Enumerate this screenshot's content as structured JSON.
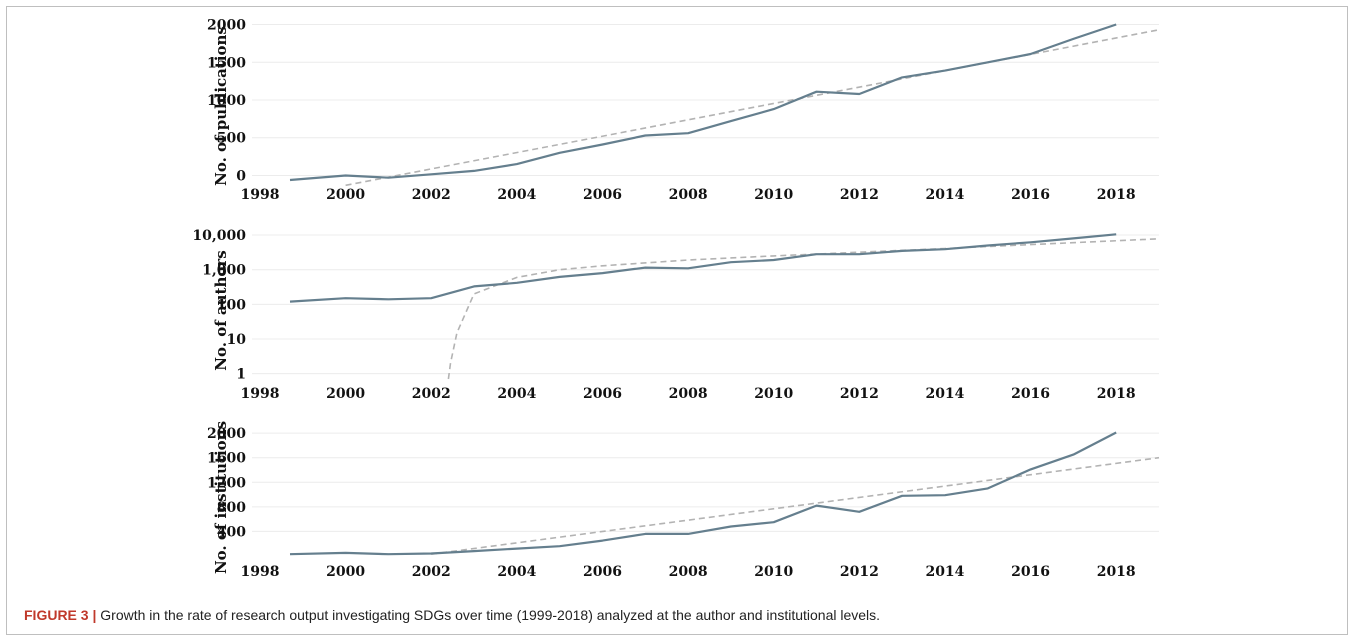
{
  "caption": {
    "label": "FIGURE 3 |",
    "text": "Growth in the rate of research output investigating SDGs over time (1999-2018) analyzed at the author and institutional levels."
  },
  "colors": {
    "series_line": "#657f8e",
    "trend_line": "#b3b3b3",
    "caption_label": "#c0392b"
  },
  "chart_data": [
    {
      "type": "line",
      "ylabel": "No. of publications",
      "y_scale": "linear",
      "ylim": [
        -100,
        2100
      ],
      "xlim": [
        1998,
        2019
      ],
      "x_ticks": [
        "1998",
        "2000",
        "2002",
        "2004",
        "2006",
        "2008",
        "2010",
        "2012",
        "2014",
        "2016",
        "2018"
      ],
      "y_ticks": [
        {
          "value": 0,
          "label": "0"
        },
        {
          "value": 500,
          "label": "500"
        },
        {
          "value": 1000,
          "label": "1000"
        },
        {
          "value": 1500,
          "label": "1500"
        },
        {
          "value": 2000,
          "label": "2000"
        }
      ],
      "grid": true,
      "series": [
        {
          "style": "solid",
          "x": [
            1998.7,
            2000,
            2001,
            2002,
            2003,
            2004,
            2005,
            2006,
            2007,
            2008,
            2009,
            2010,
            2011,
            2012,
            2013,
            2014,
            2015,
            2016,
            2017,
            2018
          ],
          "values": [
            -60,
            0,
            -30,
            15,
            60,
            150,
            300,
            410,
            530,
            560,
            720,
            880,
            1110,
            1080,
            1300,
            1390,
            1500,
            1610,
            1810,
            2000
          ]
        },
        {
          "style": "dashed",
          "x": [
            2000,
            2019
          ],
          "values": [
            -130,
            1930
          ]
        }
      ]
    },
    {
      "type": "line",
      "ylabel": "No. of authors",
      "y_scale": "log",
      "ylim": [
        0.7,
        14000
      ],
      "xlim": [
        1998,
        2019
      ],
      "x_ticks": [
        "1998",
        "2000",
        "2002",
        "2004",
        "2006",
        "2008",
        "2010",
        "2012",
        "2014",
        "2016",
        "2018"
      ],
      "y_ticks": [
        {
          "value": 1,
          "label": "1"
        },
        {
          "value": 10,
          "label": "10"
        },
        {
          "value": 100,
          "label": "100"
        },
        {
          "value": 1000,
          "label": "1,000"
        },
        {
          "value": 10000,
          "label": "10,000"
        }
      ],
      "grid": true,
      "series": [
        {
          "style": "solid",
          "x": [
            1998.7,
            2000,
            2001,
            2002,
            2003,
            2004,
            2005,
            2006,
            2007,
            2008,
            2009,
            2010,
            2011,
            2012,
            2013,
            2014,
            2015,
            2016,
            2017,
            2018
          ],
          "values": [
            120,
            150,
            140,
            150,
            330,
            420,
            620,
            800,
            1150,
            1100,
            1650,
            1900,
            2800,
            2800,
            3500,
            3900,
            5000,
            6200,
            8000,
            10500
          ]
        },
        {
          "style": "dashed",
          "x": [
            2002.4,
            2002.45,
            2002.6,
            2003,
            2004,
            2005,
            2006,
            2008,
            2010,
            2012,
            2014,
            2016,
            2019
          ],
          "values": [
            0.7,
            2,
            15,
            200,
            600,
            1000,
            1300,
            1900,
            2500,
            3200,
            4100,
            5300,
            7800
          ]
        }
      ]
    },
    {
      "type": "line",
      "ylabel": "No. of institutions",
      "y_scale": "linear",
      "ylim": [
        0,
        2100
      ],
      "xlim": [
        1998,
        2019
      ],
      "x_ticks": [
        "1998",
        "2000",
        "2002",
        "2004",
        "2006",
        "2008",
        "2010",
        "2012",
        "2014",
        "2016",
        "2018"
      ],
      "y_ticks": [
        {
          "value": 400,
          "label": "400"
        },
        {
          "value": 800,
          "label": "800"
        },
        {
          "value": 1200,
          "label": "1200"
        },
        {
          "value": 1600,
          "label": "1600"
        },
        {
          "value": 2000,
          "label": "2000"
        }
      ],
      "grid": true,
      "series": [
        {
          "style": "solid",
          "x": [
            1998.7,
            2000,
            2001,
            2002,
            2003,
            2004,
            2005,
            2006,
            2007,
            2008,
            2009,
            2010,
            2011,
            2012,
            2013,
            2014,
            2015,
            2016,
            2017,
            2018
          ],
          "values": [
            30,
            50,
            30,
            40,
            80,
            120,
            160,
            250,
            360,
            360,
            480,
            550,
            820,
            720,
            980,
            990,
            1100,
            1410,
            1650,
            2010
          ]
        },
        {
          "style": "dashed",
          "x": [
            2002,
            2019
          ],
          "values": [
            30,
            1600
          ]
        }
      ]
    }
  ]
}
